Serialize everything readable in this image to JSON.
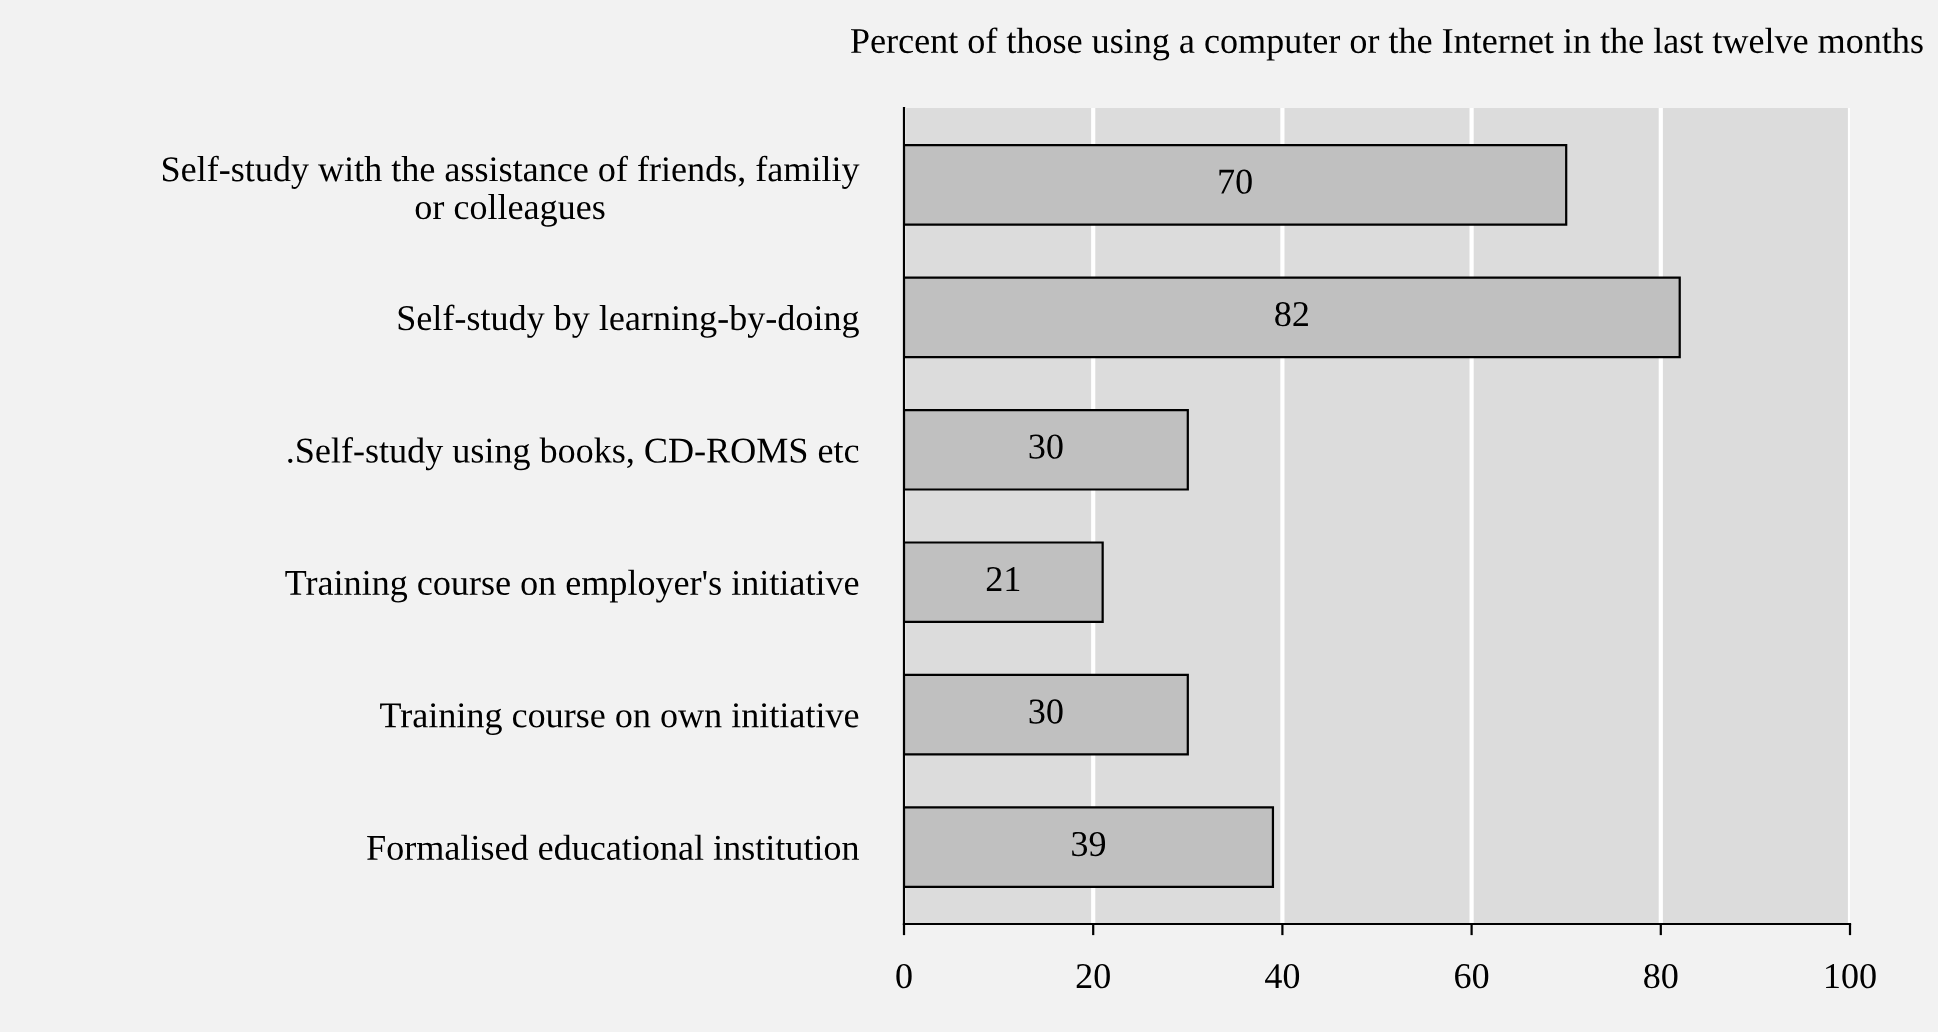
{
  "chart_data": {
    "type": "bar",
    "orientation": "horizontal",
    "title": "Percent of those using a computer or the Internet in the last twelve months",
    "categories": [
      "Self-study with the assistance of friends, familiy\nor colleagues",
      "Self-study by learning-by-doing",
      ".Self-study using books, CD-ROMS etc",
      "Training course on employer's initiative",
      "Training course on own initiative",
      "Formalised educational institution"
    ],
    "values": [
      70,
      82,
      30,
      21,
      30,
      39
    ],
    "color": "#c0c0c0",
    "data_labels": true,
    "xlim": [
      0,
      100
    ],
    "xticks": [
      0,
      20,
      40,
      60,
      80,
      100
    ],
    "grid": "x",
    "legend": false
  }
}
